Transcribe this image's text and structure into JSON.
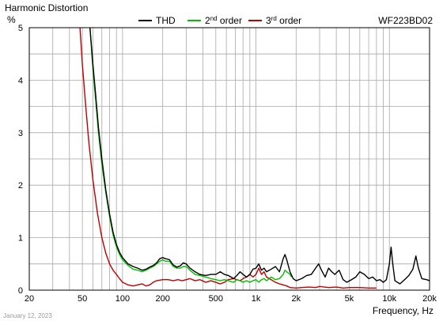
{
  "chart_data": {
    "type": "line",
    "title": "Harmonic Distortion",
    "ylabel": "%",
    "xlabel": "Frequency, Hz",
    "model": "WF223BD02",
    "date": "January 12, 2023",
    "xscale": "log",
    "xlim": [
      20,
      20000
    ],
    "ylim": [
      0,
      5
    ],
    "grid": true,
    "legend_position": "top",
    "x_ticks": [
      {
        "v": 20,
        "label": "20"
      },
      {
        "v": 50,
        "label": "50"
      },
      {
        "v": 100,
        "label": "100"
      },
      {
        "v": 200,
        "label": "200"
      },
      {
        "v": 500,
        "label": "500"
      },
      {
        "v": 1000,
        "label": "1k"
      },
      {
        "v": 2000,
        "label": "2k"
      },
      {
        "v": 5000,
        "label": "5k"
      },
      {
        "v": 10000,
        "label": "10k"
      },
      {
        "v": 20000,
        "label": "20k"
      }
    ],
    "y_ticks": [
      0,
      1,
      2,
      3,
      4,
      5
    ],
    "series": [
      {
        "name": "THD",
        "color": "#000000",
        "points": [
          [
            57,
            5.0
          ],
          [
            60,
            4.3
          ],
          [
            63,
            3.7
          ],
          [
            66,
            3.1
          ],
          [
            70,
            2.5
          ],
          [
            75,
            1.9
          ],
          [
            80,
            1.45
          ],
          [
            85,
            1.1
          ],
          [
            90,
            0.87
          ],
          [
            95,
            0.72
          ],
          [
            100,
            0.62
          ],
          [
            110,
            0.5
          ],
          [
            120,
            0.45
          ],
          [
            130,
            0.42
          ],
          [
            140,
            0.38
          ],
          [
            150,
            0.4
          ],
          [
            160,
            0.44
          ],
          [
            170,
            0.47
          ],
          [
            180,
            0.52
          ],
          [
            190,
            0.6
          ],
          [
            200,
            0.62
          ],
          [
            210,
            0.6
          ],
          [
            225,
            0.58
          ],
          [
            240,
            0.48
          ],
          [
            255,
            0.44
          ],
          [
            270,
            0.46
          ],
          [
            285,
            0.52
          ],
          [
            300,
            0.5
          ],
          [
            320,
            0.42
          ],
          [
            350,
            0.35
          ],
          [
            380,
            0.3
          ],
          [
            420,
            0.28
          ],
          [
            460,
            0.3
          ],
          [
            500,
            0.3
          ],
          [
            540,
            0.35
          ],
          [
            580,
            0.3
          ],
          [
            620,
            0.28
          ],
          [
            680,
            0.22
          ],
          [
            720,
            0.28
          ],
          [
            760,
            0.35
          ],
          [
            800,
            0.3
          ],
          [
            850,
            0.25
          ],
          [
            900,
            0.3
          ],
          [
            950,
            0.4
          ],
          [
            1000,
            0.42
          ],
          [
            1050,
            0.5
          ],
          [
            1100,
            0.38
          ],
          [
            1150,
            0.42
          ],
          [
            1200,
            0.35
          ],
          [
            1300,
            0.4
          ],
          [
            1400,
            0.45
          ],
          [
            1500,
            0.35
          ],
          [
            1600,
            0.6
          ],
          [
            1650,
            0.68
          ],
          [
            1700,
            0.58
          ],
          [
            1800,
            0.35
          ],
          [
            1900,
            0.22
          ],
          [
            2000,
            0.18
          ],
          [
            2200,
            0.22
          ],
          [
            2400,
            0.28
          ],
          [
            2600,
            0.3
          ],
          [
            2800,
            0.42
          ],
          [
            2950,
            0.5
          ],
          [
            3100,
            0.38
          ],
          [
            3300,
            0.25
          ],
          [
            3500,
            0.42
          ],
          [
            3700,
            0.35
          ],
          [
            3900,
            0.3
          ],
          [
            4200,
            0.38
          ],
          [
            4500,
            0.2
          ],
          [
            4800,
            0.15
          ],
          [
            5200,
            0.2
          ],
          [
            5600,
            0.25
          ],
          [
            6000,
            0.35
          ],
          [
            6500,
            0.3
          ],
          [
            7000,
            0.22
          ],
          [
            7500,
            0.25
          ],
          [
            8000,
            0.18
          ],
          [
            8500,
            0.2
          ],
          [
            9000,
            0.15
          ],
          [
            9500,
            0.2
          ],
          [
            10000,
            0.5
          ],
          [
            10300,
            0.82
          ],
          [
            10600,
            0.5
          ],
          [
            11000,
            0.18
          ],
          [
            12000,
            0.12
          ],
          [
            13000,
            0.2
          ],
          [
            14000,
            0.28
          ],
          [
            15000,
            0.4
          ],
          [
            15800,
            0.65
          ],
          [
            16500,
            0.42
          ],
          [
            17500,
            0.22
          ],
          [
            19000,
            0.2
          ],
          [
            20000,
            0.18
          ]
        ]
      },
      {
        "name": "2nd order",
        "label_base": "2",
        "label_sup": "nd",
        "label_rest": " order",
        "color": "#00c000",
        "points": [
          [
            57,
            5.0
          ],
          [
            60,
            4.2
          ],
          [
            63,
            3.6
          ],
          [
            66,
            3.0
          ],
          [
            70,
            2.4
          ],
          [
            75,
            1.85
          ],
          [
            80,
            1.4
          ],
          [
            85,
            1.05
          ],
          [
            90,
            0.83
          ],
          [
            95,
            0.68
          ],
          [
            100,
            0.58
          ],
          [
            110,
            0.47
          ],
          [
            120,
            0.4
          ],
          [
            130,
            0.38
          ],
          [
            140,
            0.35
          ],
          [
            150,
            0.38
          ],
          [
            160,
            0.42
          ],
          [
            170,
            0.45
          ],
          [
            180,
            0.5
          ],
          [
            190,
            0.55
          ],
          [
            200,
            0.58
          ],
          [
            210,
            0.55
          ],
          [
            225,
            0.55
          ],
          [
            240,
            0.45
          ],
          [
            255,
            0.42
          ],
          [
            270,
            0.42
          ],
          [
            285,
            0.45
          ],
          [
            300,
            0.45
          ],
          [
            320,
            0.38
          ],
          [
            350,
            0.3
          ],
          [
            380,
            0.28
          ],
          [
            420,
            0.25
          ],
          [
            460,
            0.22
          ],
          [
            500,
            0.2
          ],
          [
            540,
            0.18
          ],
          [
            580,
            0.2
          ],
          [
            620,
            0.18
          ],
          [
            680,
            0.15
          ],
          [
            720,
            0.2
          ],
          [
            760,
            0.18
          ],
          [
            800,
            0.15
          ],
          [
            850,
            0.18
          ],
          [
            900,
            0.15
          ],
          [
            950,
            0.18
          ],
          [
            1000,
            0.2
          ],
          [
            1050,
            0.15
          ],
          [
            1100,
            0.2
          ],
          [
            1150,
            0.22
          ],
          [
            1200,
            0.18
          ],
          [
            1300,
            0.25
          ],
          [
            1400,
            0.2
          ],
          [
            1500,
            0.22
          ],
          [
            1600,
            0.3
          ],
          [
            1650,
            0.38
          ],
          [
            1700,
            0.35
          ],
          [
            1800,
            0.3
          ],
          [
            1850,
            0.25
          ]
        ]
      },
      {
        "name": "3rd order",
        "label_base": "3",
        "label_sup": "rd",
        "label_rest": " order",
        "color": "#c00000",
        "points": [
          [
            48,
            5.0
          ],
          [
            50,
            4.3
          ],
          [
            53,
            3.5
          ],
          [
            56,
            2.8
          ],
          [
            60,
            2.1
          ],
          [
            65,
            1.45
          ],
          [
            70,
            1.0
          ],
          [
            75,
            0.7
          ],
          [
            80,
            0.5
          ],
          [
            85,
            0.38
          ],
          [
            90,
            0.3
          ],
          [
            95,
            0.22
          ],
          [
            100,
            0.15
          ],
          [
            110,
            0.1
          ],
          [
            120,
            0.08
          ],
          [
            130,
            0.1
          ],
          [
            140,
            0.12
          ],
          [
            150,
            0.08
          ],
          [
            160,
            0.1
          ],
          [
            170,
            0.15
          ],
          [
            180,
            0.18
          ],
          [
            200,
            0.2
          ],
          [
            220,
            0.2
          ],
          [
            240,
            0.18
          ],
          [
            260,
            0.2
          ],
          [
            280,
            0.18
          ],
          [
            300,
            0.2
          ],
          [
            320,
            0.22
          ],
          [
            350,
            0.18
          ],
          [
            380,
            0.2
          ],
          [
            420,
            0.15
          ],
          [
            460,
            0.18
          ],
          [
            500,
            0.15
          ],
          [
            540,
            0.12
          ],
          [
            580,
            0.15
          ],
          [
            620,
            0.2
          ],
          [
            680,
            0.22
          ],
          [
            720,
            0.2
          ],
          [
            760,
            0.18
          ],
          [
            800,
            0.22
          ],
          [
            850,
            0.25
          ],
          [
            900,
            0.3
          ],
          [
            950,
            0.25
          ],
          [
            1000,
            0.3
          ],
          [
            1050,
            0.42
          ],
          [
            1100,
            0.3
          ],
          [
            1150,
            0.35
          ],
          [
            1200,
            0.25
          ],
          [
            1300,
            0.2
          ],
          [
            1400,
            0.15
          ],
          [
            1500,
            0.12
          ],
          [
            1600,
            0.1
          ],
          [
            1700,
            0.08
          ],
          [
            1800,
            0.05
          ],
          [
            2000,
            0.04
          ],
          [
            2200,
            0.05
          ],
          [
            2500,
            0.06
          ],
          [
            2800,
            0.05
          ],
          [
            3000,
            0.07
          ],
          [
            3500,
            0.05
          ],
          [
            4000,
            0.06
          ],
          [
            4500,
            0.04
          ],
          [
            5000,
            0.05
          ],
          [
            6000,
            0.05
          ],
          [
            7000,
            0.04
          ],
          [
            8000,
            0.04
          ]
        ]
      }
    ]
  }
}
